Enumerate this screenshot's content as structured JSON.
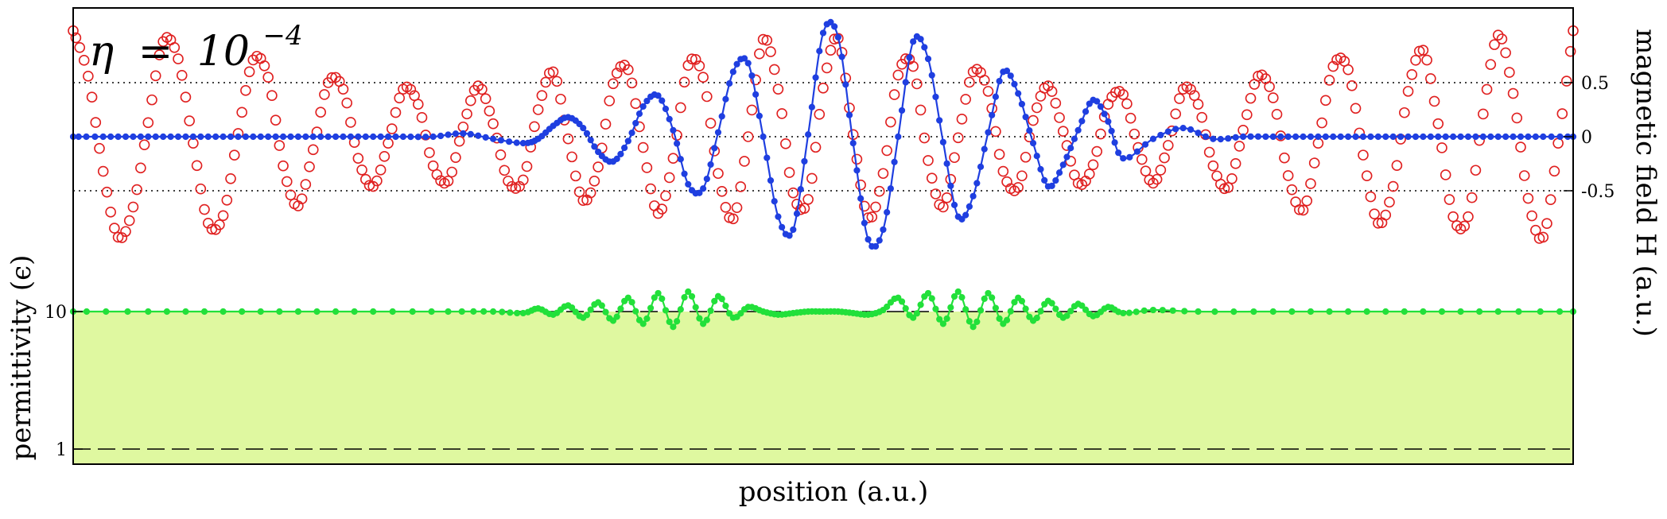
{
  "chart_data": {
    "type": "line",
    "title": "",
    "annotation": {
      "symbol": "η",
      "relation": "=",
      "base": "10",
      "exponent": "−4"
    },
    "xlabel": "position (a.u.)",
    "ylabel_left": "permittivity (ϵ)",
    "ylabel_right": "magnetic field H (a.u.)",
    "xlim": [
      0,
      1
    ],
    "ylim_left": [
      0,
      12
    ],
    "ylim_right": [
      -1.2,
      1.2
    ],
    "left_ticks": [
      {
        "value": 1,
        "label": "1"
      },
      {
        "value": 10,
        "label": "10"
      }
    ],
    "right_ticks": [
      {
        "value": 0.5,
        "label": "0.5"
      },
      {
        "value": 0,
        "label": "0"
      },
      {
        "value": -0.5,
        "label": "-0.5"
      }
    ],
    "reference_lines": [
      {
        "axis": "right",
        "value": 0.5,
        "style": "dotted"
      },
      {
        "axis": "right",
        "value": 0,
        "style": "dotted"
      },
      {
        "axis": "right",
        "value": -0.5,
        "style": "dotted"
      },
      {
        "axis": "left",
        "value": 10,
        "style": "dashed"
      },
      {
        "axis": "left",
        "value": 1,
        "style": "dashed"
      }
    ],
    "fill_region": {
      "axis": "left",
      "from": 1,
      "to": 10,
      "color": "#dff8a0"
    },
    "series": [
      {
        "axis": "right",
        "style": "red-open-circles",
        "x": [
          0.0,
          0.01,
          0.02,
          0.03,
          0.04,
          0.05,
          0.06,
          0.07,
          0.08,
          0.09,
          0.1,
          0.11,
          0.12,
          0.13,
          0.14,
          0.15,
          0.16,
          0.17,
          0.18,
          0.19,
          0.2,
          0.21,
          0.22,
          0.23,
          0.24,
          0.25,
          0.26,
          0.27,
          0.28,
          0.29,
          0.3,
          0.31,
          0.32,
          0.33,
          0.34,
          0.35,
          0.36,
          0.37,
          0.38,
          0.39,
          0.4,
          0.41,
          0.42,
          0.43,
          0.44,
          0.45,
          0.46,
          0.47,
          0.48,
          0.49,
          0.5,
          0.51,
          0.52,
          0.53,
          0.54,
          0.55,
          0.56,
          0.57,
          0.58,
          0.59,
          0.6,
          0.61,
          0.62,
          0.63,
          0.64,
          0.65,
          0.66,
          0.67,
          0.68,
          0.69,
          0.7,
          0.71,
          0.72,
          0.73,
          0.74,
          0.75,
          0.76,
          0.77,
          0.78,
          0.79,
          0.8,
          0.81,
          0.82,
          0.83,
          0.84,
          0.85,
          0.86,
          0.87,
          0.88,
          0.89,
          0.9,
          0.91,
          0.92,
          0.93,
          0.94,
          0.95,
          0.96,
          0.97,
          0.98,
          0.99,
          1.0
        ],
        "y": [
          0.98,
          0.56,
          -0.32,
          -0.93,
          -0.65,
          0.13,
          0.88,
          0.72,
          -0.06,
          -0.8,
          -0.73,
          0.03,
          0.71,
          0.55,
          -0.27,
          -0.64,
          -0.12,
          0.5,
          0.44,
          -0.2,
          -0.46,
          -0.06,
          0.44,
          0.3,
          -0.27,
          -0.41,
          0.09,
          0.47,
          0.12,
          -0.41,
          -0.4,
          0.25,
          0.6,
          -0.02,
          -0.59,
          -0.28,
          0.49,
          0.62,
          -0.1,
          -0.71,
          -0.2,
          0.66,
          0.55,
          -0.34,
          -0.76,
          0.0,
          0.9,
          0.44,
          -0.52,
          -0.58,
          0.45,
          0.91,
          0.02,
          -0.75,
          -0.34,
          0.57,
          0.65,
          -0.22,
          -0.65,
          -0.01,
          0.6,
          0.42,
          -0.32,
          -0.47,
          0.15,
          0.47,
          0.05,
          -0.43,
          -0.26,
          0.3,
          0.39,
          -0.1,
          -0.43,
          -0.08,
          0.44,
          0.3,
          -0.27,
          -0.47,
          0.06,
          0.56,
          0.36,
          -0.36,
          -0.68,
          -0.06,
          0.65,
          0.62,
          -0.17,
          -0.8,
          -0.46,
          0.42,
          0.8,
          0.12,
          -0.74,
          -0.74,
          0.21,
          0.94,
          0.4,
          -0.57,
          -0.93,
          -0.06,
          0.98
        ]
      },
      {
        "axis": "right",
        "style": "blue-line-markers",
        "x": [
          0.0,
          0.02,
          0.04,
          0.06,
          0.08,
          0.1,
          0.12,
          0.14,
          0.16,
          0.18,
          0.2,
          0.22,
          0.24,
          0.26,
          0.28,
          0.3,
          0.31,
          0.32,
          0.33,
          0.34,
          0.35,
          0.36,
          0.37,
          0.38,
          0.39,
          0.4,
          0.41,
          0.42,
          0.43,
          0.44,
          0.45,
          0.46,
          0.47,
          0.48,
          0.49,
          0.5,
          0.51,
          0.52,
          0.53,
          0.54,
          0.55,
          0.56,
          0.57,
          0.58,
          0.59,
          0.6,
          0.61,
          0.62,
          0.63,
          0.64,
          0.65,
          0.66,
          0.67,
          0.68,
          0.69,
          0.7,
          0.72,
          0.74,
          0.76,
          0.78,
          0.8,
          0.82,
          0.84,
          0.86,
          0.88,
          0.9,
          0.92,
          0.94,
          0.96,
          0.98,
          1.0
        ],
        "y": [
          0.0,
          0.0,
          0.0,
          0.0,
          0.0,
          0.0,
          0.0,
          0.0,
          0.0,
          0.0,
          0.0,
          0.0,
          0.0,
          0.03,
          -0.02,
          -0.06,
          -0.02,
          0.1,
          0.18,
          0.08,
          -0.14,
          -0.23,
          -0.04,
          0.28,
          0.38,
          0.06,
          -0.44,
          -0.48,
          0.04,
          0.6,
          0.68,
          0.0,
          -0.74,
          -0.86,
          0.02,
          0.96,
          0.92,
          -0.06,
          -0.95,
          -0.86,
          0.0,
          0.88,
          0.72,
          -0.05,
          -0.74,
          -0.55,
          0.04,
          0.6,
          0.4,
          -0.06,
          -0.46,
          -0.26,
          0.06,
          0.34,
          0.14,
          -0.2,
          -0.02,
          0.08,
          -0.02,
          0.0,
          0.0,
          0.0,
          0.0,
          0.0,
          0.0,
          0.0,
          0.0,
          0.0,
          0.0,
          0.0,
          0.0
        ]
      },
      {
        "axis": "left",
        "style": "green-line-markers",
        "x": [
          0.0,
          0.05,
          0.1,
          0.15,
          0.2,
          0.25,
          0.28,
          0.3,
          0.31,
          0.32,
          0.33,
          0.34,
          0.35,
          0.36,
          0.37,
          0.38,
          0.39,
          0.4,
          0.41,
          0.42,
          0.43,
          0.44,
          0.45,
          0.46,
          0.47,
          0.48,
          0.49,
          0.5,
          0.51,
          0.52,
          0.53,
          0.54,
          0.55,
          0.56,
          0.57,
          0.58,
          0.59,
          0.6,
          0.61,
          0.62,
          0.63,
          0.64,
          0.65,
          0.66,
          0.67,
          0.68,
          0.69,
          0.7,
          0.72,
          0.75,
          0.8,
          0.85,
          0.9,
          0.95,
          1.0
        ],
        "y": [
          10.0,
          10.0,
          10.0,
          10.0,
          10.0,
          10.0,
          10.0,
          9.9,
          10.2,
          9.8,
          10.4,
          9.6,
          10.6,
          9.4,
          10.9,
          9.2,
          11.2,
          9.0,
          11.3,
          9.2,
          11.0,
          9.6,
          10.3,
          10.0,
          9.8,
          9.9,
          10.0,
          10.0,
          10.0,
          9.9,
          9.8,
          10.1,
          10.9,
          9.6,
          11.2,
          9.2,
          11.3,
          9.0,
          11.2,
          9.2,
          10.9,
          9.4,
          10.7,
          9.6,
          10.5,
          9.7,
          10.3,
          9.9,
          10.1,
          10.0,
          10.0,
          10.0,
          10.0,
          10.0,
          10.0
        ]
      }
    ]
  }
}
